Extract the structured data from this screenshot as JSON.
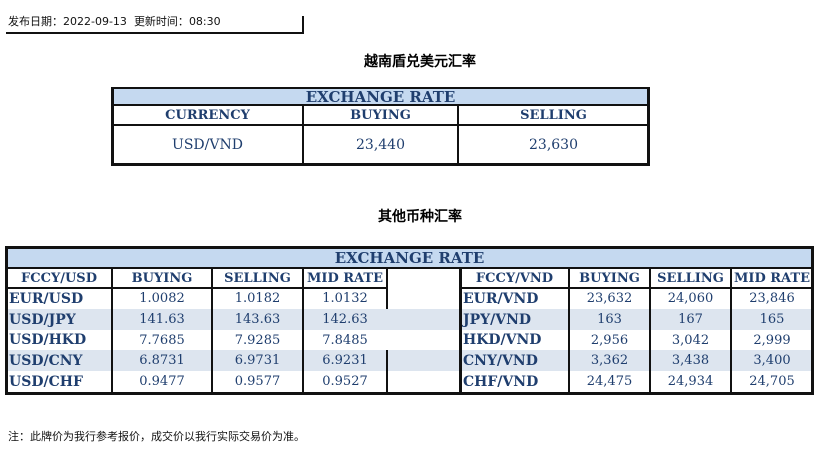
{
  "header": {
    "publish_label": "发布日期：",
    "publish_date": "2022-09-13",
    "update_label": "更新时间：",
    "update_time": "08:30"
  },
  "usd_vnd": {
    "title": "越南盾兑美元汇率",
    "band": "EXCHANGE RATE",
    "columns": [
      "CURRENCY",
      "BUYING",
      "SELLING"
    ],
    "row": [
      "USD/VND",
      "23,440",
      "23,630"
    ]
  },
  "others": {
    "title": "其他币种汇率",
    "band": "EXCHANGE  RATE",
    "left_columns": [
      "FCCY/USD",
      "BUYING",
      "SELLING",
      "MID RATE"
    ],
    "left_rows": [
      [
        "EUR/USD",
        "1.0082",
        "1.0182",
        "1.0132"
      ],
      [
        "USD/JPY",
        "141.63",
        "143.63",
        "142.63"
      ],
      [
        "USD/HKD",
        "7.7685",
        "7.9285",
        "7.8485"
      ],
      [
        "USD/CNY",
        "6.8731",
        "6.9731",
        "6.9231"
      ],
      [
        "USD/CHF",
        "0.9477",
        "0.9577",
        "0.9527"
      ]
    ],
    "right_columns": [
      "FCCY/VND",
      "BUYING",
      "SELLING",
      "MID RATE"
    ],
    "right_rows": [
      [
        "EUR/VND",
        "23,632",
        "24,060",
        "23,846"
      ],
      [
        "JPY/VND",
        "163",
        "167",
        "165"
      ],
      [
        "HKD/VND",
        "2,956",
        "3,042",
        "2,999"
      ],
      [
        "CNY/VND",
        "3,362",
        "3,438",
        "3,400"
      ],
      [
        "CHF/VND",
        "24,475",
        "24,934",
        "24,705"
      ]
    ]
  },
  "note": "注：此牌价为我行参考报价，成交价以我行实际交易价为准。",
  "colors": {
    "text": "#1f3e6e",
    "band": "#c5d9f0",
    "alt_row": "#dde5ef"
  }
}
